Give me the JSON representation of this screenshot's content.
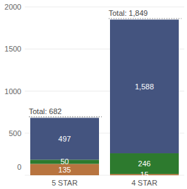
{
  "chart_data": {
    "type": "bar",
    "stacked": true,
    "data_labels": true,
    "grid": true,
    "categories": [
      "5 STAR",
      "4 STAR"
    ],
    "series": [
      {
        "color": "#b8743f",
        "values": [
          135,
          15
        ]
      },
      {
        "color": "#2d7a2e",
        "values": [
          50,
          246
        ]
      },
      {
        "color": "#44547f",
        "values": [
          497,
          1588
        ],
        "value_labels": [
          "497",
          "1,588"
        ]
      }
    ],
    "total_labels": [
      "Total: 682",
      "Total: 1,849"
    ],
    "ylim": [
      0,
      2000
    ],
    "yticks": [
      0,
      500,
      1000,
      1500,
      2000
    ]
  }
}
